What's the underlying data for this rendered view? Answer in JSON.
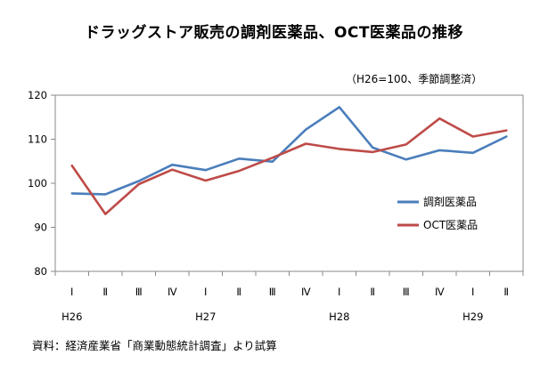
{
  "title": "ドラッグストア販売の調剤医薬品、OCT医薬品の推移",
  "unit_note": "（H26=100、季節調整済）",
  "source": "資料：経済産業省「商業動態統計調査」より試算",
  "chart_data": {
    "type": "line",
    "title": "ドラッグストア販売の調剤医薬品、OCT医薬品の推移",
    "ylim": [
      80,
      120
    ],
    "yticks": [
      80,
      90,
      100,
      110,
      120
    ],
    "categories": [
      "Ⅰ",
      "Ⅱ",
      "Ⅲ",
      "Ⅳ",
      "Ⅰ",
      "Ⅱ",
      "Ⅲ",
      "Ⅳ",
      "Ⅰ",
      "Ⅱ",
      "Ⅲ",
      "Ⅳ",
      "Ⅰ",
      "Ⅱ"
    ],
    "year_labels": [
      {
        "label": "H26",
        "index": 0
      },
      {
        "label": "H27",
        "index": 4
      },
      {
        "label": "H28",
        "index": 8
      },
      {
        "label": "H29",
        "index": 12
      }
    ],
    "grid": false,
    "legend_position": "right",
    "series": [
      {
        "name": "調剤医薬品",
        "color": "#4a7ebb",
        "values": [
          97.7,
          97.5,
          100.5,
          104.2,
          103.0,
          105.6,
          104.9,
          112.2,
          117.3,
          108.1,
          105.4,
          107.5,
          106.9,
          110.6
        ]
      },
      {
        "name": "OCT医薬品",
        "color": "#be4b48",
        "values": [
          104.0,
          93.0,
          99.8,
          103.1,
          100.6,
          102.8,
          105.8,
          109.0,
          107.8,
          107.1,
          108.8,
          114.7,
          110.6,
          112.0
        ]
      }
    ]
  }
}
